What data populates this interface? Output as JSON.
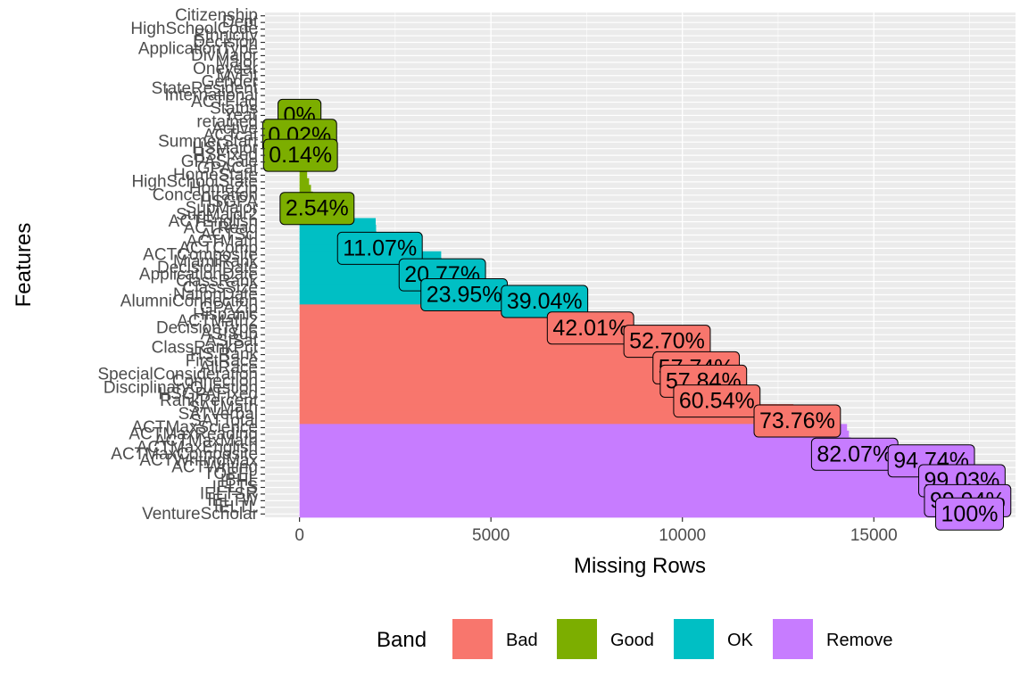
{
  "chart_data": {
    "type": "bar",
    "orientation": "horizontal",
    "xlabel": "Missing Rows",
    "ylabel": "Features",
    "xlim": [
      -900,
      18700
    ],
    "x_ticks": [
      0,
      5000,
      10000,
      15000
    ],
    "grid": true,
    "legend": {
      "title": "Band",
      "position": "bottom",
      "entries": [
        {
          "name": "Bad",
          "color": "#F8766D"
        },
        {
          "name": "Good",
          "color": "#7CAE00"
        },
        {
          "name": "OK",
          "color": "#00BFC4"
        },
        {
          "name": "Remove",
          "color": "#C77CFF"
        }
      ]
    },
    "band_colors": {
      "Bad": "#F8766D",
      "Good": "#7CAE00",
      "OK": "#00BFC4",
      "Remove": "#C77CFF"
    },
    "features": [
      {
        "name": "Citizenship",
        "value": 0,
        "band": "Good"
      },
      {
        "name": "Dept",
        "value": 0,
        "band": "Good"
      },
      {
        "name": "HighSchoolCode",
        "value": 0,
        "band": "Good"
      },
      {
        "name": "Ethnicity",
        "value": 0,
        "band": "Good"
      },
      {
        "name": "Decision",
        "value": 0,
        "band": "Good"
      },
      {
        "name": "ApplicationType",
        "value": 0,
        "band": "Good"
      },
      {
        "name": "DivMajor",
        "value": 0,
        "band": "Good"
      },
      {
        "name": "Major",
        "value": 0,
        "band": "Good"
      },
      {
        "name": "Oneyear",
        "value": 0,
        "band": "Good"
      },
      {
        "name": "MyFit",
        "value": 0,
        "band": "Good"
      },
      {
        "name": "Gender",
        "value": 0,
        "band": "Good"
      },
      {
        "name": "StateResident",
        "value": 0,
        "band": "Good"
      },
      {
        "name": "International",
        "value": 0,
        "band": "Good"
      },
      {
        "name": "ACTFlag",
        "value": 0,
        "band": "Good"
      },
      {
        "name": "Status",
        "value": 0,
        "band": "Good"
      },
      {
        "name": "Year",
        "value": 0,
        "band": "Good"
      },
      {
        "name": "retained",
        "value": 4,
        "band": "Good"
      },
      {
        "name": "Active",
        "value": 4,
        "band": "Good"
      },
      {
        "name": "ACTcat",
        "value": 4,
        "band": "Good"
      },
      {
        "name": "SummerStart",
        "value": 25,
        "band": "Good"
      },
      {
        "name": "HSMajor",
        "value": 25,
        "band": "Good"
      },
      {
        "name": "HSFixed",
        "value": 25,
        "band": "Good"
      },
      {
        "name": "GPAScale",
        "value": 100,
        "band": "Good"
      },
      {
        "name": "GPACat",
        "value": 150,
        "band": "Good"
      },
      {
        "name": "HomeState",
        "value": 200,
        "band": "Good"
      },
      {
        "name": "HighSchoolState",
        "value": 250,
        "band": "Good"
      },
      {
        "name": "HomeZip",
        "value": 300,
        "band": "Good"
      },
      {
        "name": "Concentration",
        "value": 350,
        "band": "Good"
      },
      {
        "name": "HSGPA",
        "value": 400,
        "band": "Good"
      },
      {
        "name": "SupMajor",
        "value": 459,
        "band": "Good"
      },
      {
        "name": "SupMajor2",
        "value": 600,
        "band": "OK"
      },
      {
        "name": "ACTEnglish",
        "value": 1990,
        "band": "OK"
      },
      {
        "name": "ACTRead",
        "value": 2000,
        "band": "OK"
      },
      {
        "name": "ACTSci",
        "value": 2010,
        "band": "OK"
      },
      {
        "name": "ACTMath",
        "value": 2020,
        "band": "OK"
      },
      {
        "name": "ACTComp",
        "value": 2100,
        "band": "OK"
      },
      {
        "name": "ACTComposite",
        "value": 3700,
        "band": "OK"
      },
      {
        "name": "MiamiRank",
        "value": 3710,
        "band": "OK"
      },
      {
        "name": "DecisionDate",
        "value": 3720,
        "band": "OK"
      },
      {
        "name": "ApplicationDate",
        "value": 3730,
        "band": "OK"
      },
      {
        "name": "ClassRank",
        "value": 4200,
        "band": "OK"
      },
      {
        "name": "ClassSize",
        "value": 4250,
        "band": "OK"
      },
      {
        "name": "NationDate",
        "value": 4300,
        "band": "OK"
      },
      {
        "name": "AlumniConnection",
        "value": 6400,
        "band": "OK"
      },
      {
        "name": "GPAZip",
        "value": 7450,
        "band": "Bad"
      },
      {
        "name": "Hispanic",
        "value": 7500,
        "band": "Bad"
      },
      {
        "name": "ACTMath2",
        "value": 7550,
        "band": "Bad"
      },
      {
        "name": "DecisionType",
        "value": 7600,
        "band": "Bad"
      },
      {
        "name": "ASISub",
        "value": 9500,
        "band": "Bad"
      },
      {
        "name": "ASISat",
        "value": 9600,
        "band": "Bad"
      },
      {
        "name": "ClassRankPct",
        "value": 10300,
        "band": "Bad"
      },
      {
        "name": "HS Rank",
        "value": 10320,
        "band": "Bad"
      },
      {
        "name": "FirstRace",
        "value": 10340,
        "band": "Bad"
      },
      {
        "name": "AllRace",
        "value": 10360,
        "band": "Bad"
      },
      {
        "name": "SpecialConsideration",
        "value": 10500,
        "band": "Bad"
      },
      {
        "name": "Connection",
        "value": 10550,
        "band": "Bad"
      },
      {
        "name": "DisciplinaryQuestion",
        "value": 10800,
        "band": "Bad"
      },
      {
        "name": "HSGPAFixed",
        "value": 10850,
        "band": "Bad"
      },
      {
        "name": "RankPercent",
        "value": 10900,
        "band": "Bad"
      },
      {
        "name": "SATMath",
        "value": 12900,
        "band": "Bad"
      },
      {
        "name": "SATVerbal",
        "value": 12950,
        "band": "Bad"
      },
      {
        "name": "SATTotal",
        "value": 13000,
        "band": "Bad"
      },
      {
        "name": "ACTMaxScience",
        "value": 14300,
        "band": "Remove"
      },
      {
        "name": "ACTMaxReading",
        "value": 14350,
        "band": "Remove"
      },
      {
        "name": "ACTMaxMath",
        "value": 14400,
        "band": "Remove"
      },
      {
        "name": "ACTMaxEnglish",
        "value": 14450,
        "band": "Remove"
      },
      {
        "name": "ACTMaxComposite",
        "value": 14500,
        "band": "Remove"
      },
      {
        "name": "ACTWritingMax",
        "value": 16500,
        "band": "Remove"
      },
      {
        "name": "ACTWriting",
        "value": 17200,
        "band": "Remove"
      },
      {
        "name": "TOEFL",
        "value": 17250,
        "band": "Remove"
      },
      {
        "name": "IBHL",
        "value": 17300,
        "band": "Remove"
      },
      {
        "name": "IELTS",
        "value": 17350,
        "band": "Remove"
      },
      {
        "name": "IELTSR",
        "value": 17400,
        "band": "Remove"
      },
      {
        "name": "IELTW",
        "value": 17450,
        "band": "Remove"
      },
      {
        "name": "IELTL",
        "value": 17480,
        "band": "Remove"
      },
      {
        "name": "VentureScholar",
        "value": 17500,
        "band": "Remove"
      }
    ],
    "annotations": [
      {
        "feature": "Year",
        "label": "0%"
      },
      {
        "feature": "ACTcat",
        "label": "0.02%"
      },
      {
        "feature": "HSFixed",
        "label": "0.14%"
      },
      {
        "feature": "SupMajor",
        "label": "2.54%"
      },
      {
        "feature": "ACTComp",
        "label": "11.07%"
      },
      {
        "feature": "ApplicationDate",
        "label": "20.77%"
      },
      {
        "feature": "NationDate",
        "label": "23.95%"
      },
      {
        "feature": "AlumniConnection",
        "label": "39.04%"
      },
      {
        "feature": "DecisionType",
        "label": "42.01%"
      },
      {
        "feature": "ASISat",
        "label": "52.70%"
      },
      {
        "feature": "AllRace",
        "label": "57.74%"
      },
      {
        "feature": "Connection",
        "label": "57.84%"
      },
      {
        "feature": "RankPercent",
        "label": "60.54%"
      },
      {
        "feature": "SATTotal",
        "label": "73.76%"
      },
      {
        "feature": "ACTMaxComposite",
        "label": "82.07%"
      },
      {
        "feature": "ACTWritingMax",
        "label": "94.74%"
      },
      {
        "feature": "IBHL",
        "label": "99.03%"
      },
      {
        "feature": "IELTW",
        "label": "99.94%"
      },
      {
        "feature": "VentureScholar",
        "label": "100%"
      }
    ]
  }
}
